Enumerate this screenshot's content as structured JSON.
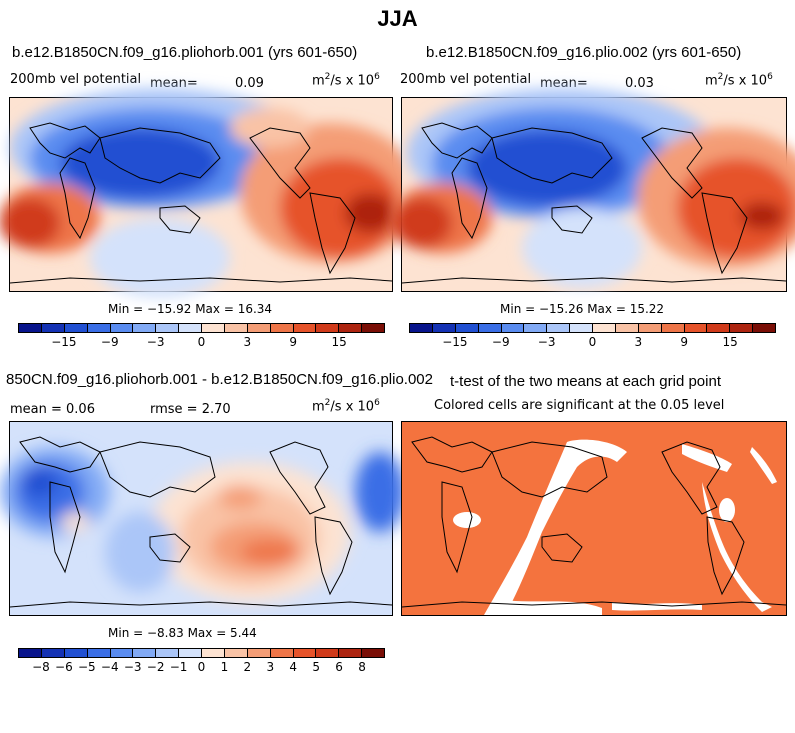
{
  "title": "JJA",
  "colors": {
    "blue_scale": [
      "#08148c",
      "#1432b4",
      "#2150d2",
      "#3a6ee6",
      "#5a8cf0",
      "#82aaf5",
      "#abc6f8",
      "#d4e2fb"
    ],
    "red_scale": [
      "#fde3d2",
      "#f9c3a6",
      "#f49d76",
      "#ee7548",
      "#e6532a",
      "#d03a1a",
      "#ad2410",
      "#7a0e06"
    ],
    "sig": "#f4733e"
  },
  "panels": {
    "p1": {
      "title": "b.e12.B1850CN.f09_g16.pliohorb.001 (yrs 601-650)",
      "variable": "200mb vel potential",
      "mean_label": "mean=",
      "mean_value": "0.09",
      "units": "m",
      "units_exp": "2",
      "units_mid": "/s x 10",
      "units_exp2": "6",
      "minmax": "Min = −15.92 Max =  16.34"
    },
    "p2": {
      "title": "b.e12.B1850CN.f09_g16.plio.002 (yrs 601-650)",
      "variable": "200mb vel potential",
      "mean_label": "mean=",
      "mean_value": "0.03",
      "units": "m",
      "units_exp": "2",
      "units_mid": "/s x 10",
      "units_exp2": "6",
      "minmax": "Min = −15.26 Max =  15.22"
    },
    "p3": {
      "title": "850CN.f09_g16.pliohorb.001 - b.e12.B1850CN.f09_g16.plio.002",
      "mean_text": "mean =   0.06",
      "rmse_text": "rmse =   2.70",
      "units": "m",
      "units_exp": "2",
      "units_mid": "/s x 10",
      "units_exp2": "6",
      "minmax": "Min = −8.83 Max =  5.44"
    },
    "p4": {
      "title": "t-test of the two means at each grid point",
      "subtitle": "Colored cells are significant at the 0.05 level"
    }
  },
  "colorbar_top": {
    "ticks": [
      "−15",
      "−9",
      "−3",
      "0",
      "3",
      "9",
      "15"
    ]
  },
  "colorbar_bottom": {
    "ticks": [
      "−8",
      "−6",
      "−5",
      "−4",
      "−3",
      "−2",
      "−1",
      "0",
      "1",
      "2",
      "3",
      "4",
      "5",
      "6",
      "8"
    ]
  }
}
